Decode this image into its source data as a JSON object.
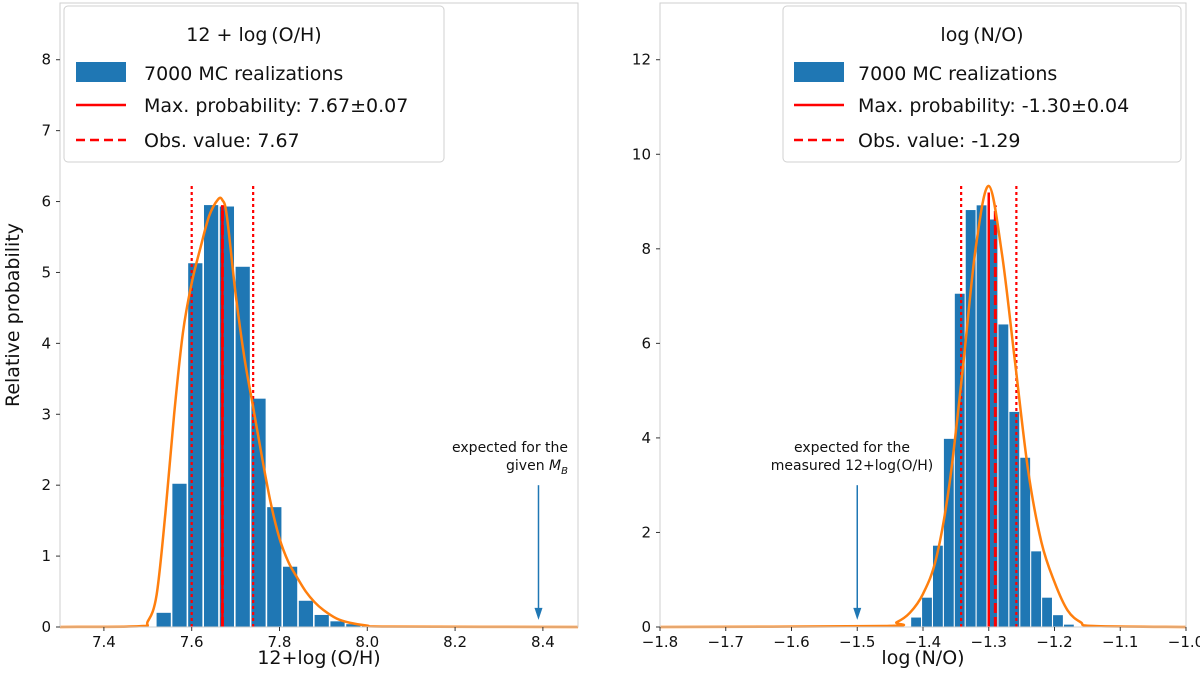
{
  "chart_data": [
    {
      "type": "bar",
      "panel": "left",
      "legend_title": "12 + log (O/H)",
      "legend_position": "top-left",
      "xlabel": "12+log (O/H)",
      "ylabel": "Relative probability",
      "xlim": [
        7.3,
        8.48
      ],
      "ylim": [
        0,
        8.8
      ],
      "xticks": [
        7.4,
        7.6,
        7.8,
        8.0,
        8.2,
        8.4
      ],
      "xtick_labels": [
        "7.4",
        "7.6",
        "7.8",
        "8.0",
        "8.2",
        "8.4"
      ],
      "yticks": [
        0,
        1,
        2,
        3,
        4,
        5,
        6,
        7,
        8
      ],
      "ytick_labels": [
        "0",
        "1",
        "2",
        "3",
        "4",
        "5",
        "6",
        "7",
        "8"
      ],
      "bin_width": 0.036,
      "histogram": {
        "name": "7000 MC realizations",
        "color": "#1f77b4",
        "bin_left": [
          7.52,
          7.556,
          7.592,
          7.628,
          7.664,
          7.7,
          7.736,
          7.772,
          7.808,
          7.844,
          7.88,
          7.916,
          7.952,
          7.988
        ],
        "values": [
          0.2,
          2.02,
          5.13,
          5.95,
          5.93,
          5.08,
          3.22,
          1.69,
          0.85,
          0.37,
          0.17,
          0.08,
          0.04,
          0.02
        ]
      },
      "kde": {
        "color": "#ff7f0e",
        "x": [
          7.3,
          7.48,
          7.5,
          7.52,
          7.54,
          7.56,
          7.58,
          7.6,
          7.62,
          7.64,
          7.66,
          7.67,
          7.68,
          7.7,
          7.72,
          7.74,
          7.76,
          7.78,
          7.8,
          7.82,
          7.84,
          7.86,
          7.88,
          7.9,
          7.93,
          7.96,
          8.0,
          8.05,
          8.48
        ],
        "y": [
          0,
          0.01,
          0.08,
          0.45,
          1.6,
          3.0,
          4.15,
          4.85,
          5.35,
          5.8,
          6.03,
          6.02,
          5.8,
          4.7,
          3.8,
          3.1,
          2.4,
          1.75,
          1.25,
          0.92,
          0.7,
          0.5,
          0.35,
          0.24,
          0.12,
          0.06,
          0.02,
          0.005,
          0
        ]
      },
      "max_probability": {
        "label": "Max. probability: 7.67±0.07",
        "value": 7.67,
        "error": 0.07,
        "color": "#ff0000"
      },
      "obs_value": {
        "label": "Obs. value: 7.67",
        "value": 7.67,
        "color": "#ff0000"
      },
      "error_bounds": [
        7.6,
        7.74
      ],
      "annotation": {
        "line1": "expected for the",
        "line2": "given",
        "symbol": "M",
        "subscript": "B",
        "x": 8.39,
        "arrow_from_y": 2.0,
        "arrow_to_y": 0.1
      }
    },
    {
      "type": "bar",
      "panel": "right",
      "legend_title": "log (N/O)",
      "legend_position": "top-right",
      "xlabel": "log (N/O)",
      "ylabel": "",
      "xlim": [
        -1.8,
        -1.0
      ],
      "ylim": [
        0,
        13.2
      ],
      "xticks": [
        -1.8,
        -1.7,
        -1.6,
        -1.5,
        -1.4,
        -1.3,
        -1.2,
        -1.1,
        -1.0
      ],
      "xtick_labels": [
        "−1.8",
        "−1.7",
        "−1.6",
        "−1.5",
        "−1.4",
        "−1.3",
        "−1.2",
        "−1.1",
        "−1.0"
      ],
      "yticks": [
        0,
        2,
        4,
        6,
        8,
        10,
        12
      ],
      "ytick_labels": [
        "0",
        "2",
        "4",
        "6",
        "8",
        "10",
        "12"
      ],
      "bin_width": 0.0166,
      "histogram": {
        "name": "7000 MC realizations",
        "color": "#1f77b4",
        "bin_left": [
          -1.418,
          -1.4014,
          -1.3848,
          -1.3682,
          -1.3516,
          -1.335,
          -1.3184,
          -1.3018,
          -1.2852,
          -1.2686,
          -1.252,
          -1.2354,
          -1.2188,
          -1.2022,
          -1.1856
        ],
        "values": [
          0.2,
          0.62,
          1.72,
          3.98,
          7.05,
          8.82,
          8.92,
          8.62,
          6.4,
          4.55,
          3.58,
          1.6,
          0.62,
          0.25,
          0.05
        ]
      },
      "kde": {
        "color": "#ff7f0e",
        "x": [
          -1.8,
          -1.46,
          -1.44,
          -1.42,
          -1.4,
          -1.38,
          -1.36,
          -1.34,
          -1.32,
          -1.3,
          -1.28,
          -1.26,
          -1.24,
          -1.22,
          -1.2,
          -1.18,
          -1.16,
          -1.14,
          -1.0
        ],
        "y": [
          0,
          0.02,
          0.1,
          0.3,
          0.7,
          1.45,
          3.0,
          5.4,
          8.0,
          9.33,
          7.9,
          5.6,
          3.3,
          1.8,
          0.95,
          0.35,
          0.1,
          0.02,
          0
        ]
      },
      "max_probability": {
        "label": "Max. probability: -1.30±0.04",
        "value": -1.3,
        "error": 0.04,
        "color": "#ff0000"
      },
      "obs_value": {
        "label": "Obs. value: -1.29",
        "value": -1.29,
        "color": "#ff0000"
      },
      "error_bounds": [
        -1.342,
        -1.258
      ],
      "annotation": {
        "line1": "expected for the",
        "line2": "measured 12+log(O/H)",
        "x": -1.5,
        "arrow_from_y": 3.0,
        "arrow_to_y": 0.15
      }
    }
  ]
}
